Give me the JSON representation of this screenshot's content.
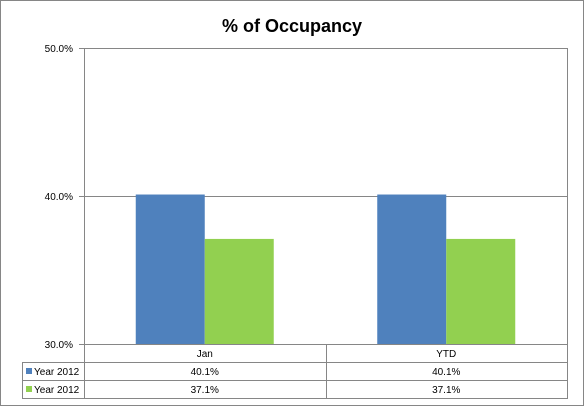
{
  "chart_data": {
    "type": "bar",
    "title": "% of Occupancy",
    "categories": [
      "Jan",
      "YTD"
    ],
    "series": [
      {
        "name": "Year 2012",
        "values": [
          40.1,
          40.1
        ],
        "value_labels": [
          "40.1%",
          "40.1%"
        ],
        "color": "#4f81bd"
      },
      {
        "name": "Year 2012",
        "values": [
          37.1,
          37.1
        ],
        "value_labels": [
          "37.1%",
          "37.1%"
        ],
        "color": "#92d050"
      }
    ],
    "ylim": [
      30,
      50
    ],
    "yticks": [
      30,
      40,
      50
    ],
    "ytick_labels": [
      "30.0%",
      "40.0%",
      "50.0%"
    ],
    "grid": true,
    "legend": "data-table-left",
    "data_table": true
  }
}
